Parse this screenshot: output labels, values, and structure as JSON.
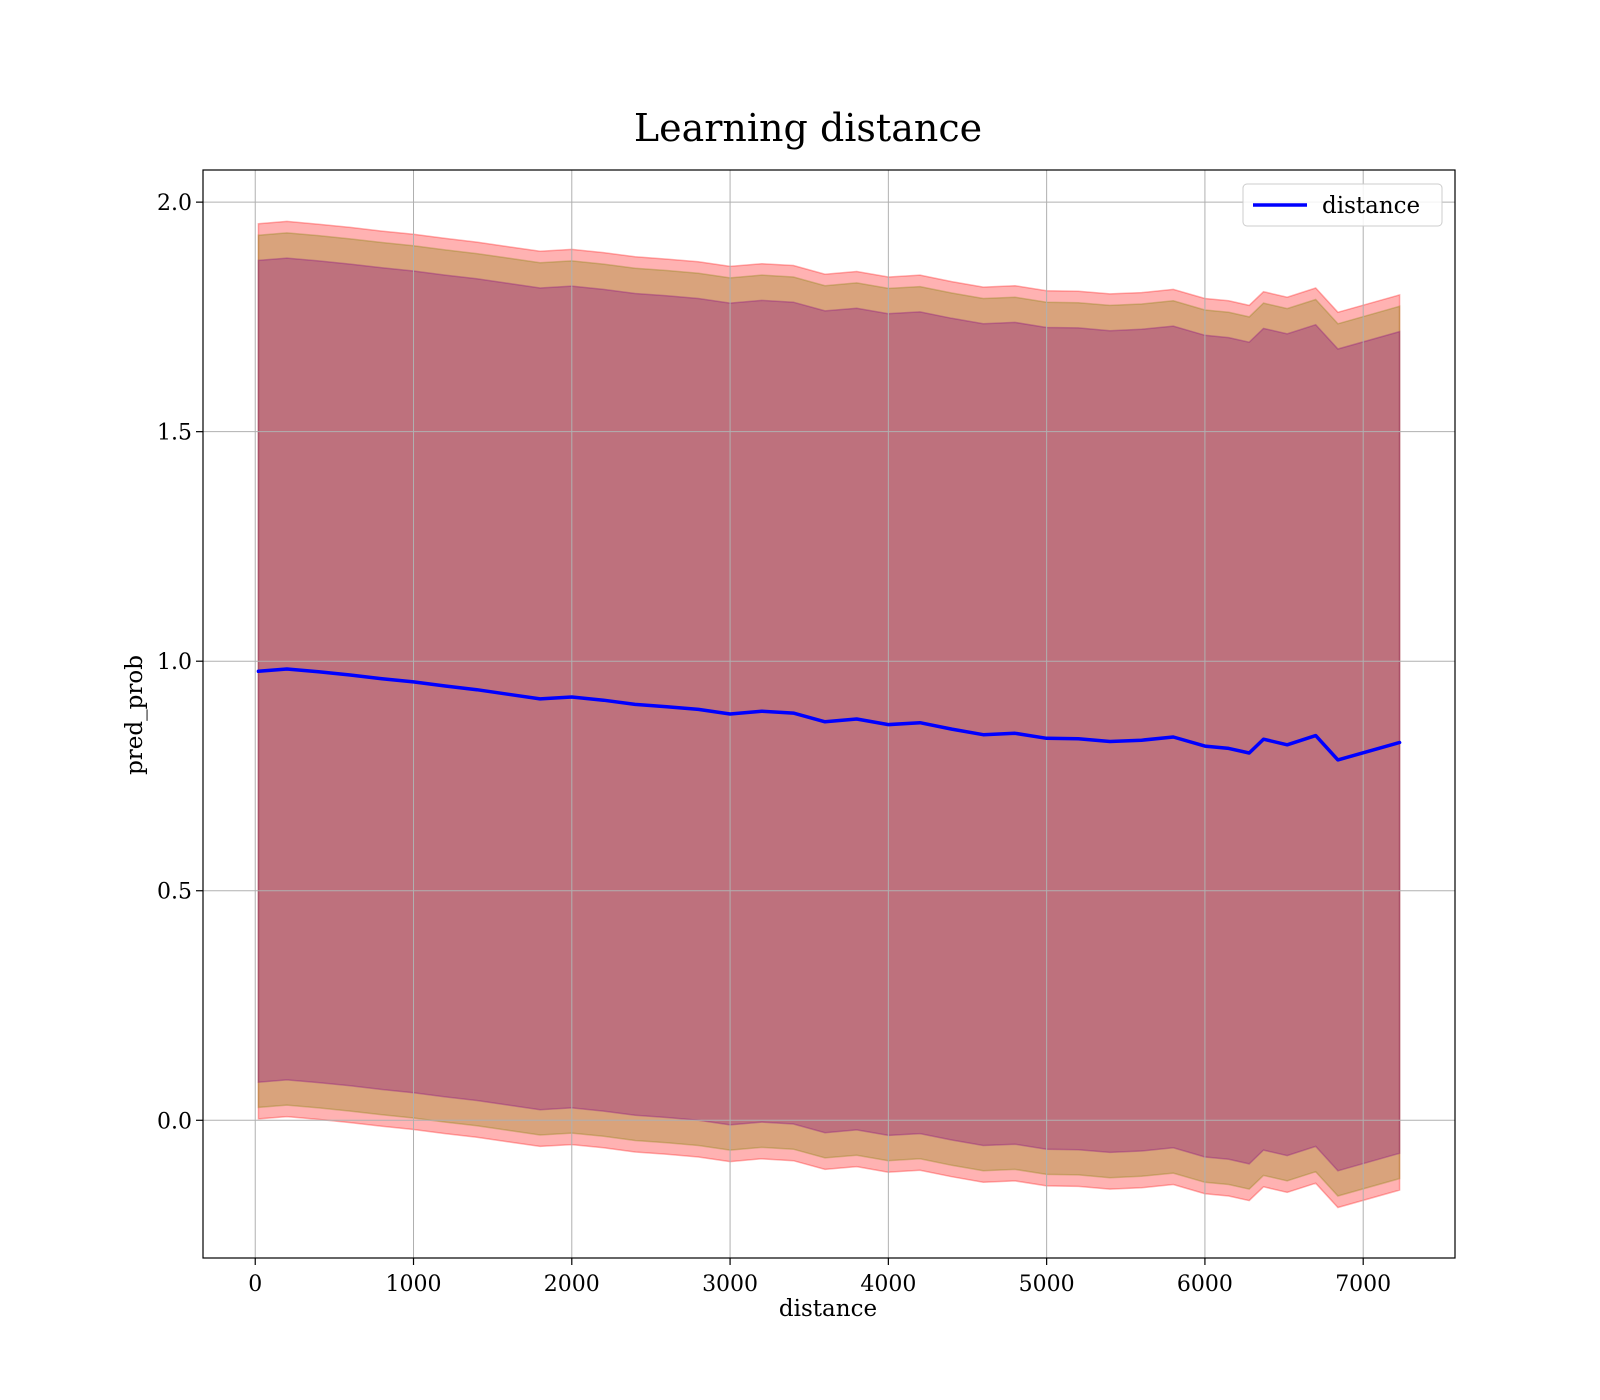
{
  "chart_data": {
    "type": "area",
    "title": "Learning distance",
    "xlabel": "distance",
    "ylabel": "pred_prob",
    "xlim": [
      -330,
      7580
    ],
    "ylim": [
      -0.3,
      2.07
    ],
    "xticks": [
      0,
      1000,
      2000,
      3000,
      4000,
      5000,
      6000,
      7000
    ],
    "xtick_labels": [
      "0",
      "1000",
      "2000",
      "3000",
      "4000",
      "5000",
      "6000",
      "7000"
    ],
    "yticks": [
      0.0,
      0.5,
      1.0,
      1.5,
      2.0
    ],
    "ytick_labels": [
      "0.0",
      "0.5",
      "1.0",
      "1.5",
      "2.0"
    ],
    "grid": true,
    "legend_position": "top-right",
    "colors": {
      "line": "#0000ff",
      "band_outer": "#ff0000",
      "band_middle": "#808000",
      "band_inner": "#800080",
      "grid": "#b0b0b0"
    },
    "x": [
      20,
      200,
      400,
      600,
      800,
      1000,
      1200,
      1400,
      1600,
      1800,
      2000,
      2200,
      2400,
      2600,
      2800,
      3000,
      3200,
      3400,
      3600,
      3800,
      4000,
      4200,
      4400,
      4600,
      4800,
      5000,
      5200,
      5400,
      5600,
      5800,
      6000,
      6150,
      6280,
      6370,
      6520,
      6700,
      6840,
      7230
    ],
    "series": [
      {
        "name": "distance",
        "values": [
          0.978,
          0.983,
          0.977,
          0.97,
          0.962,
          0.955,
          0.946,
          0.938,
          0.928,
          0.918,
          0.922,
          0.915,
          0.906,
          0.901,
          0.895,
          0.885,
          0.891,
          0.887,
          0.868,
          0.874,
          0.862,
          0.866,
          0.852,
          0.84,
          0.843,
          0.832,
          0.831,
          0.825,
          0.828,
          0.835,
          0.815,
          0.81,
          0.8,
          0.83,
          0.818,
          0.838,
          0.785,
          0.823
        ]
      }
    ],
    "bands": [
      {
        "band": "outer",
        "half_width": 0.975
      },
      {
        "band": "middle",
        "half_width": 0.95
      },
      {
        "band": "inner",
        "half_width": 0.895
      }
    ]
  }
}
